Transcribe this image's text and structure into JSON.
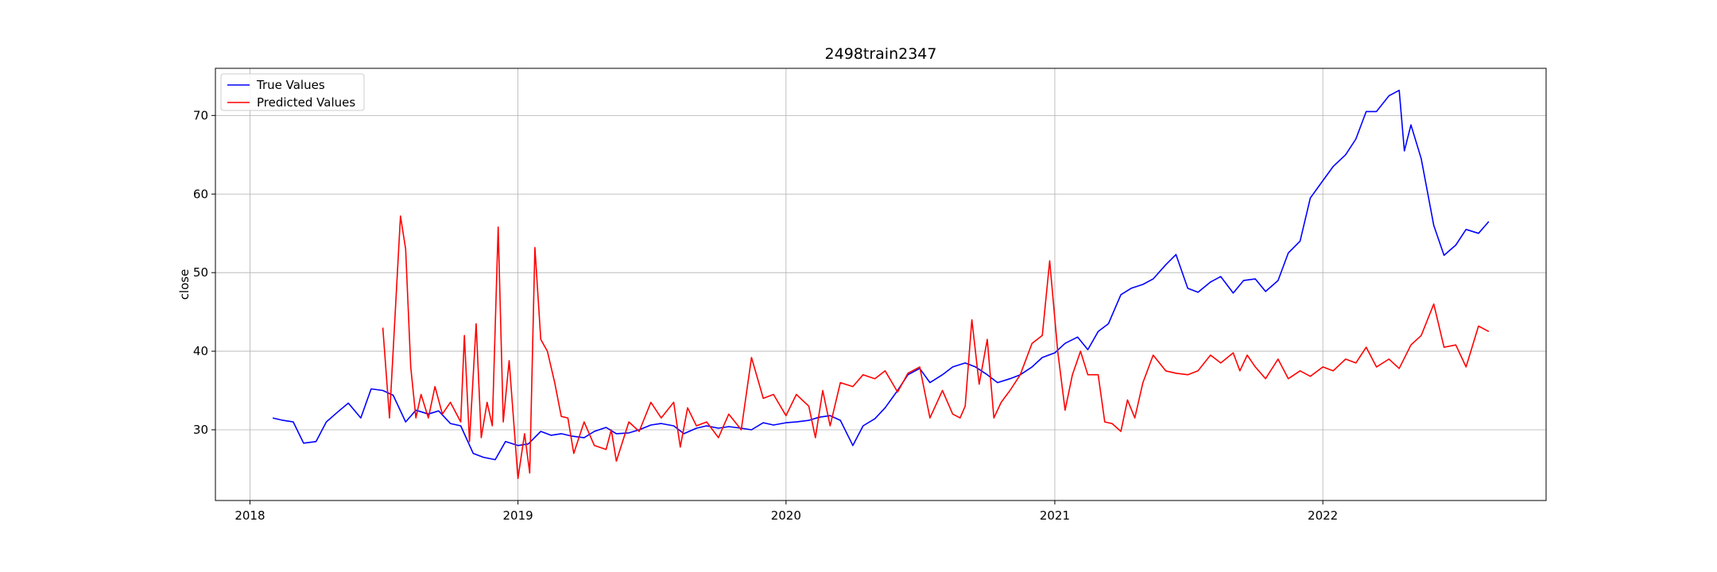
{
  "chart_data": {
    "type": "line",
    "title": "2498train2347",
    "xlabel": "",
    "ylabel": "close",
    "xlim": [
      "2017-11-15",
      "2022-11-01"
    ],
    "ylim": [
      21,
      76
    ],
    "x_ticks": [
      "2018",
      "2019",
      "2020",
      "2021",
      "2022"
    ],
    "y_ticks": [
      30,
      40,
      50,
      60,
      70
    ],
    "grid": true,
    "legend_position": "top-left",
    "series": [
      {
        "name": "True Values",
        "color": "#0000ff",
        "points": [
          [
            "2018-02-01",
            31.5
          ],
          [
            "2018-02-15",
            31.2
          ],
          [
            "2018-03-01",
            31.0
          ],
          [
            "2018-03-15",
            28.3
          ],
          [
            "2018-04-01",
            28.5
          ],
          [
            "2018-04-15",
            31.0
          ],
          [
            "2018-05-01",
            32.3
          ],
          [
            "2018-05-15",
            33.4
          ],
          [
            "2018-06-01",
            31.5
          ],
          [
            "2018-06-15",
            35.2
          ],
          [
            "2018-07-01",
            35.0
          ],
          [
            "2018-07-15",
            34.4
          ],
          [
            "2018-08-01",
            31.0
          ],
          [
            "2018-08-15",
            32.5
          ],
          [
            "2018-09-01",
            32.0
          ],
          [
            "2018-09-15",
            32.4
          ],
          [
            "2018-10-01",
            30.8
          ],
          [
            "2018-10-15",
            30.5
          ],
          [
            "2018-11-01",
            27.0
          ],
          [
            "2018-11-15",
            26.5
          ],
          [
            "2018-12-01",
            26.2
          ],
          [
            "2018-12-15",
            28.5
          ],
          [
            "2019-01-01",
            28.0
          ],
          [
            "2019-01-15",
            28.2
          ],
          [
            "2019-02-01",
            29.8
          ],
          [
            "2019-02-15",
            29.3
          ],
          [
            "2019-03-01",
            29.5
          ],
          [
            "2019-03-15",
            29.2
          ],
          [
            "2019-04-01",
            29.0
          ],
          [
            "2019-04-15",
            29.8
          ],
          [
            "2019-05-01",
            30.3
          ],
          [
            "2019-05-15",
            29.5
          ],
          [
            "2019-06-01",
            29.6
          ],
          [
            "2019-06-15",
            30.0
          ],
          [
            "2019-07-01",
            30.6
          ],
          [
            "2019-07-15",
            30.8
          ],
          [
            "2019-08-01",
            30.5
          ],
          [
            "2019-08-15",
            29.5
          ],
          [
            "2019-09-01",
            30.2
          ],
          [
            "2019-09-15",
            30.5
          ],
          [
            "2019-10-01",
            30.2
          ],
          [
            "2019-10-15",
            30.4
          ],
          [
            "2019-11-01",
            30.2
          ],
          [
            "2019-11-15",
            30.0
          ],
          [
            "2019-12-01",
            30.9
          ],
          [
            "2019-12-15",
            30.6
          ],
          [
            "2020-01-01",
            30.9
          ],
          [
            "2020-01-15",
            31.0
          ],
          [
            "2020-02-01",
            31.2
          ],
          [
            "2020-02-15",
            31.6
          ],
          [
            "2020-03-01",
            31.8
          ],
          [
            "2020-03-15",
            31.2
          ],
          [
            "2020-04-01",
            28.0
          ],
          [
            "2020-04-15",
            30.5
          ],
          [
            "2020-05-01",
            31.4
          ],
          [
            "2020-05-15",
            32.8
          ],
          [
            "2020-06-01",
            35.0
          ],
          [
            "2020-06-15",
            37.0
          ],
          [
            "2020-07-01",
            37.8
          ],
          [
            "2020-07-15",
            36.0
          ],
          [
            "2020-08-01",
            37.0
          ],
          [
            "2020-08-15",
            38.0
          ],
          [
            "2020-09-01",
            38.5
          ],
          [
            "2020-09-15",
            38.0
          ],
          [
            "2020-10-01",
            37.0
          ],
          [
            "2020-10-15",
            36.0
          ],
          [
            "2020-11-01",
            36.5
          ],
          [
            "2020-11-15",
            37.0
          ],
          [
            "2020-12-01",
            38.0
          ],
          [
            "2020-12-15",
            39.2
          ],
          [
            "2021-01-01",
            39.8
          ],
          [
            "2021-01-15",
            41.0
          ],
          [
            "2021-02-01",
            41.8
          ],
          [
            "2021-02-15",
            40.2
          ],
          [
            "2021-03-01",
            42.5
          ],
          [
            "2021-03-15",
            43.5
          ],
          [
            "2021-04-01",
            47.2
          ],
          [
            "2021-04-15",
            48.0
          ],
          [
            "2021-05-01",
            48.5
          ],
          [
            "2021-05-15",
            49.2
          ],
          [
            "2021-06-01",
            51.0
          ],
          [
            "2021-06-15",
            52.3
          ],
          [
            "2021-07-01",
            48.0
          ],
          [
            "2021-07-15",
            47.5
          ],
          [
            "2021-08-01",
            48.8
          ],
          [
            "2021-08-15",
            49.5
          ],
          [
            "2021-09-01",
            47.4
          ],
          [
            "2021-09-15",
            49.0
          ],
          [
            "2021-10-01",
            49.2
          ],
          [
            "2021-10-15",
            47.6
          ],
          [
            "2021-11-01",
            49.0
          ],
          [
            "2021-11-15",
            52.5
          ],
          [
            "2021-12-01",
            54.0
          ],
          [
            "2021-12-15",
            59.5
          ],
          [
            "2022-01-01",
            61.7
          ],
          [
            "2022-01-15",
            63.5
          ],
          [
            "2022-02-01",
            65.0
          ],
          [
            "2022-02-15",
            67.0
          ],
          [
            "2022-03-01",
            70.5
          ],
          [
            "2022-03-15",
            70.5
          ],
          [
            "2022-04-01",
            72.5
          ],
          [
            "2022-04-15",
            73.2
          ],
          [
            "2022-04-22",
            65.5
          ],
          [
            "2022-05-01",
            68.8
          ],
          [
            "2022-05-15",
            64.5
          ],
          [
            "2022-06-01",
            56.0
          ],
          [
            "2022-06-15",
            52.2
          ],
          [
            "2022-07-01",
            53.5
          ],
          [
            "2022-07-15",
            55.5
          ],
          [
            "2022-08-01",
            55.0
          ],
          [
            "2022-08-15",
            56.5
          ]
        ]
      },
      {
        "name": "Predicted Values",
        "color": "#ff0000",
        "points": [
          [
            "2018-07-01",
            43.0
          ],
          [
            "2018-07-10",
            31.5
          ],
          [
            "2018-07-25",
            57.2
          ],
          [
            "2018-08-01",
            53.0
          ],
          [
            "2018-08-08",
            38.0
          ],
          [
            "2018-08-15",
            31.5
          ],
          [
            "2018-08-22",
            34.5
          ],
          [
            "2018-09-01",
            31.5
          ],
          [
            "2018-09-10",
            35.5
          ],
          [
            "2018-09-20",
            32.0
          ],
          [
            "2018-10-01",
            33.5
          ],
          [
            "2018-10-15",
            31.0
          ],
          [
            "2018-10-20",
            42.0
          ],
          [
            "2018-10-27",
            28.5
          ],
          [
            "2018-11-05",
            43.5
          ],
          [
            "2018-11-12",
            29.0
          ],
          [
            "2018-11-20",
            33.5
          ],
          [
            "2018-11-27",
            30.5
          ],
          [
            "2018-12-05",
            55.8
          ],
          [
            "2018-12-12",
            31.0
          ],
          [
            "2018-12-20",
            38.8
          ],
          [
            "2019-01-01",
            23.8
          ],
          [
            "2019-01-10",
            29.5
          ],
          [
            "2019-01-17",
            24.5
          ],
          [
            "2019-01-24",
            53.2
          ],
          [
            "2019-02-01",
            41.5
          ],
          [
            "2019-02-10",
            40.0
          ],
          [
            "2019-02-20",
            36.0
          ],
          [
            "2019-03-01",
            31.7
          ],
          [
            "2019-03-10",
            31.5
          ],
          [
            "2019-03-18",
            27.0
          ],
          [
            "2019-04-01",
            31.0
          ],
          [
            "2019-04-15",
            28.0
          ],
          [
            "2019-05-01",
            27.5
          ],
          [
            "2019-05-08",
            30.0
          ],
          [
            "2019-05-15",
            26.0
          ],
          [
            "2019-06-01",
            31.0
          ],
          [
            "2019-06-15",
            29.8
          ],
          [
            "2019-07-01",
            33.5
          ],
          [
            "2019-07-15",
            31.5
          ],
          [
            "2019-08-01",
            33.5
          ],
          [
            "2019-08-10",
            27.8
          ],
          [
            "2019-08-20",
            32.8
          ],
          [
            "2019-09-01",
            30.5
          ],
          [
            "2019-09-15",
            31.0
          ],
          [
            "2019-10-01",
            29.0
          ],
          [
            "2019-10-15",
            32.0
          ],
          [
            "2019-11-01",
            30.0
          ],
          [
            "2019-11-15",
            39.2
          ],
          [
            "2019-12-01",
            34.0
          ],
          [
            "2019-12-15",
            34.5
          ],
          [
            "2020-01-01",
            31.8
          ],
          [
            "2020-01-15",
            34.5
          ],
          [
            "2020-02-01",
            33.0
          ],
          [
            "2020-02-10",
            29.0
          ],
          [
            "2020-02-20",
            35.0
          ],
          [
            "2020-03-01",
            30.5
          ],
          [
            "2020-03-15",
            36.0
          ],
          [
            "2020-04-01",
            35.5
          ],
          [
            "2020-04-15",
            37.0
          ],
          [
            "2020-05-01",
            36.5
          ],
          [
            "2020-05-15",
            37.5
          ],
          [
            "2020-06-01",
            34.8
          ],
          [
            "2020-06-15",
            37.2
          ],
          [
            "2020-07-01",
            38.0
          ],
          [
            "2020-07-15",
            31.5
          ],
          [
            "2020-08-01",
            35.0
          ],
          [
            "2020-08-15",
            32.0
          ],
          [
            "2020-08-25",
            31.5
          ],
          [
            "2020-09-01",
            33.0
          ],
          [
            "2020-09-10",
            44.0
          ],
          [
            "2020-09-20",
            35.8
          ],
          [
            "2020-10-01",
            41.5
          ],
          [
            "2020-10-10",
            31.5
          ],
          [
            "2020-10-20",
            33.5
          ],
          [
            "2020-11-01",
            35.0
          ],
          [
            "2020-11-15",
            37.0
          ],
          [
            "2020-12-01",
            41.0
          ],
          [
            "2020-12-15",
            42.0
          ],
          [
            "2020-12-25",
            51.5
          ],
          [
            "2021-01-05",
            40.0
          ],
          [
            "2021-01-15",
            32.5
          ],
          [
            "2021-01-25",
            37.0
          ],
          [
            "2021-02-05",
            40.0
          ],
          [
            "2021-02-15",
            37.0
          ],
          [
            "2021-03-01",
            37.0
          ],
          [
            "2021-03-10",
            31.0
          ],
          [
            "2021-03-20",
            30.8
          ],
          [
            "2021-04-01",
            29.8
          ],
          [
            "2021-04-10",
            33.8
          ],
          [
            "2021-04-20",
            31.5
          ],
          [
            "2021-05-01",
            36.0
          ],
          [
            "2021-05-15",
            39.5
          ],
          [
            "2021-06-01",
            37.5
          ],
          [
            "2021-06-15",
            37.2
          ],
          [
            "2021-07-01",
            37.0
          ],
          [
            "2021-07-15",
            37.5
          ],
          [
            "2021-08-01",
            39.5
          ],
          [
            "2021-08-15",
            38.5
          ],
          [
            "2021-09-01",
            39.8
          ],
          [
            "2021-09-10",
            37.5
          ],
          [
            "2021-09-20",
            39.5
          ],
          [
            "2021-10-01",
            38.0
          ],
          [
            "2021-10-15",
            36.5
          ],
          [
            "2021-11-01",
            39.0
          ],
          [
            "2021-11-15",
            36.5
          ],
          [
            "2021-12-01",
            37.5
          ],
          [
            "2021-12-15",
            36.8
          ],
          [
            "2022-01-01",
            38.0
          ],
          [
            "2022-01-15",
            37.5
          ],
          [
            "2022-02-01",
            39.0
          ],
          [
            "2022-02-15",
            38.5
          ],
          [
            "2022-03-01",
            40.5
          ],
          [
            "2022-03-15",
            38.0
          ],
          [
            "2022-04-01",
            39.0
          ],
          [
            "2022-04-15",
            37.8
          ],
          [
            "2022-05-01",
            40.8
          ],
          [
            "2022-05-15",
            42.0
          ],
          [
            "2022-06-01",
            46.0
          ],
          [
            "2022-06-15",
            40.5
          ],
          [
            "2022-07-01",
            40.8
          ],
          [
            "2022-07-15",
            38.0
          ],
          [
            "2022-08-01",
            43.2
          ],
          [
            "2022-08-15",
            42.5
          ]
        ]
      }
    ]
  }
}
